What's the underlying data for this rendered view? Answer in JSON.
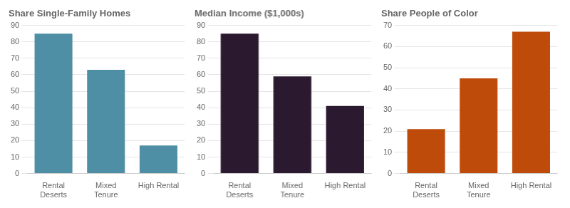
{
  "chart_data": [
    {
      "type": "bar",
      "title": "Share Single-Family Homes",
      "categories": [
        "Rental\nDeserts",
        "Mixed\nTenure",
        "High Rental"
      ],
      "values": [
        85,
        63,
        17
      ],
      "color": "#4e8fa5",
      "ylim": [
        0,
        90
      ],
      "yticks": [
        0,
        10,
        20,
        30,
        40,
        50,
        60,
        70,
        80,
        90
      ],
      "grid": true
    },
    {
      "type": "bar",
      "title": "Median Income ($1,000s)",
      "categories": [
        "Rental\nDeserts",
        "Mixed\nTenure",
        "High Rental"
      ],
      "values": [
        85,
        59,
        41
      ],
      "color": "#2b1a2f",
      "ylim": [
        0,
        90
      ],
      "yticks": [
        0,
        10,
        20,
        30,
        40,
        50,
        60,
        70,
        80,
        90
      ],
      "grid": true
    },
    {
      "type": "bar",
      "title": "Share People of Color",
      "categories": [
        "Rental\nDeserts",
        "Mixed\nTenure",
        "High Rental"
      ],
      "values": [
        21,
        45,
        67
      ],
      "color": "#bf4b0b",
      "ylim": [
        0,
        70
      ],
      "yticks": [
        0,
        10,
        20,
        30,
        40,
        50,
        60,
        70
      ],
      "grid": true
    }
  ]
}
